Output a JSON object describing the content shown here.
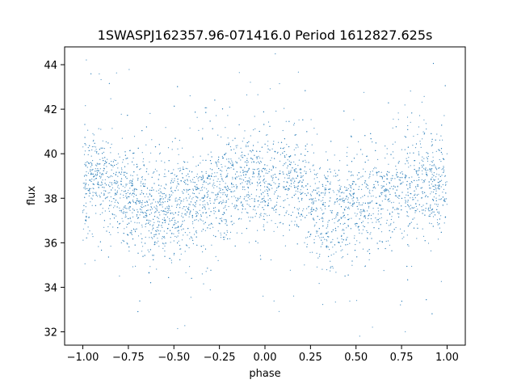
{
  "chart_data": {
    "type": "scatter",
    "title": "1SWASPJ162357.96-071416.0 Period 1612827.625s",
    "xlabel": "phase",
    "ylabel": "flux",
    "xlim": [
      -1.1,
      1.1
    ],
    "ylim": [
      31.4,
      44.8
    ],
    "xticks": [
      -1.0,
      -0.75,
      -0.5,
      -0.25,
      0.0,
      0.25,
      0.5,
      0.75,
      1.0
    ],
    "xtick_labels": [
      "−1.00",
      "−0.75",
      "−0.50",
      "−0.25",
      "0.00",
      "0.25",
      "0.50",
      "0.75",
      "1.00"
    ],
    "yticks": [
      32,
      34,
      36,
      38,
      40,
      42,
      44
    ],
    "ytick_labels": [
      "32",
      "34",
      "36",
      "38",
      "40",
      "42",
      "44"
    ],
    "grid": false,
    "legend": "none",
    "marker_color": "#1f77b4",
    "series": [
      {
        "name": "",
        "description_points": [
          {
            "x": -1.0,
            "y": 38.6
          },
          {
            "x": -0.9,
            "y": 39.0
          },
          {
            "x": -0.8,
            "y": 38.5
          },
          {
            "x": -0.7,
            "y": 37.6
          },
          {
            "x": -0.6,
            "y": 37.3
          },
          {
            "x": -0.5,
            "y": 37.6
          },
          {
            "x": -0.4,
            "y": 38.0
          },
          {
            "x": -0.3,
            "y": 38.1
          },
          {
            "x": -0.2,
            "y": 38.4
          },
          {
            "x": -0.1,
            "y": 38.7
          },
          {
            "x": 0.0,
            "y": 38.6
          },
          {
            "x": 0.1,
            "y": 39.0
          },
          {
            "x": 0.2,
            "y": 38.5
          },
          {
            "x": 0.3,
            "y": 37.6
          },
          {
            "x": 0.4,
            "y": 37.3
          },
          {
            "x": 0.5,
            "y": 37.6
          },
          {
            "x": 0.6,
            "y": 38.0
          },
          {
            "x": 0.7,
            "y": 38.1
          },
          {
            "x": 0.8,
            "y": 38.4
          },
          {
            "x": 0.9,
            "y": 38.7
          },
          {
            "x": 1.0,
            "y": 38.6
          }
        ]
      }
    ]
  }
}
